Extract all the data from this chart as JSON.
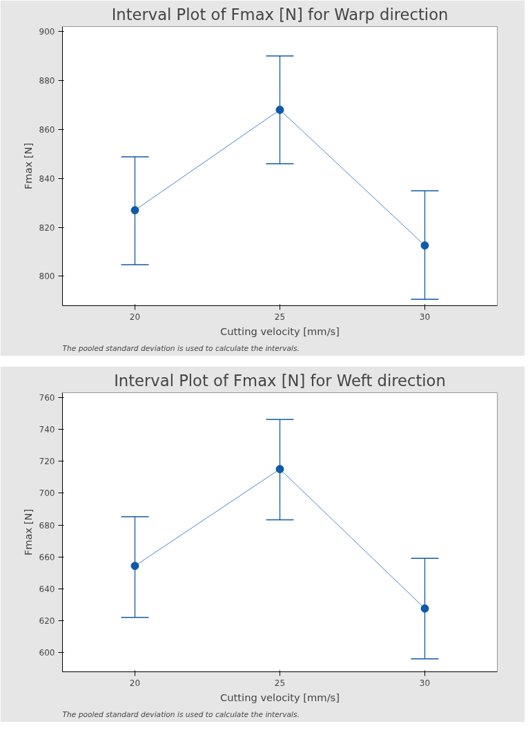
{
  "chart_data": [
    {
      "type": "line",
      "title": "Interval Plot of Fmax [N] for Warp direction",
      "xlabel": "Cutting velocity [mm/s]",
      "ylabel": "Fmax [N]",
      "x": [
        20,
        25,
        30
      ],
      "xlim": [
        17.5,
        32.5
      ],
      "xticks": [
        20,
        25,
        30
      ],
      "ylim": [
        788,
        902
      ],
      "yticks": [
        800,
        820,
        840,
        860,
        880,
        900
      ],
      "series": [
        {
          "color": "#0f5aa8",
          "values": [
            827,
            868,
            812.6
          ],
          "errors": [
            [
              804.7,
              848.8
            ],
            [
              846,
              890
            ],
            [
              790.6,
              834.9
            ]
          ]
        }
      ],
      "marker": "circle",
      "grid": false,
      "annotations": [
        "The pooled standard deviation is used to calculate the intervals."
      ]
    },
    {
      "type": "line",
      "title": "Interval Plot of Fmax [N] for Weft direction",
      "xlabel": "Cutting velocity [mm/s]",
      "ylabel": "Fmax [N]",
      "x": [
        20,
        25,
        30
      ],
      "xlim": [
        17.5,
        32.5
      ],
      "xticks": [
        20,
        25,
        30
      ],
      "ylim": [
        588,
        763
      ],
      "yticks": [
        600,
        620,
        640,
        660,
        680,
        700,
        720,
        740,
        760
      ],
      "series": [
        {
          "color": "#0f5aa8",
          "values": [
            654.4,
            715.1,
            627.7
          ],
          "errors": [
            [
              622.1,
              685.2
            ],
            [
              683.3,
              746.2
            ],
            [
              596.1,
              659.2
            ]
          ]
        }
      ],
      "marker": "circle",
      "grid": false,
      "annotations": [
        "The pooled standard deviation is used to calculate the intervals."
      ]
    }
  ]
}
